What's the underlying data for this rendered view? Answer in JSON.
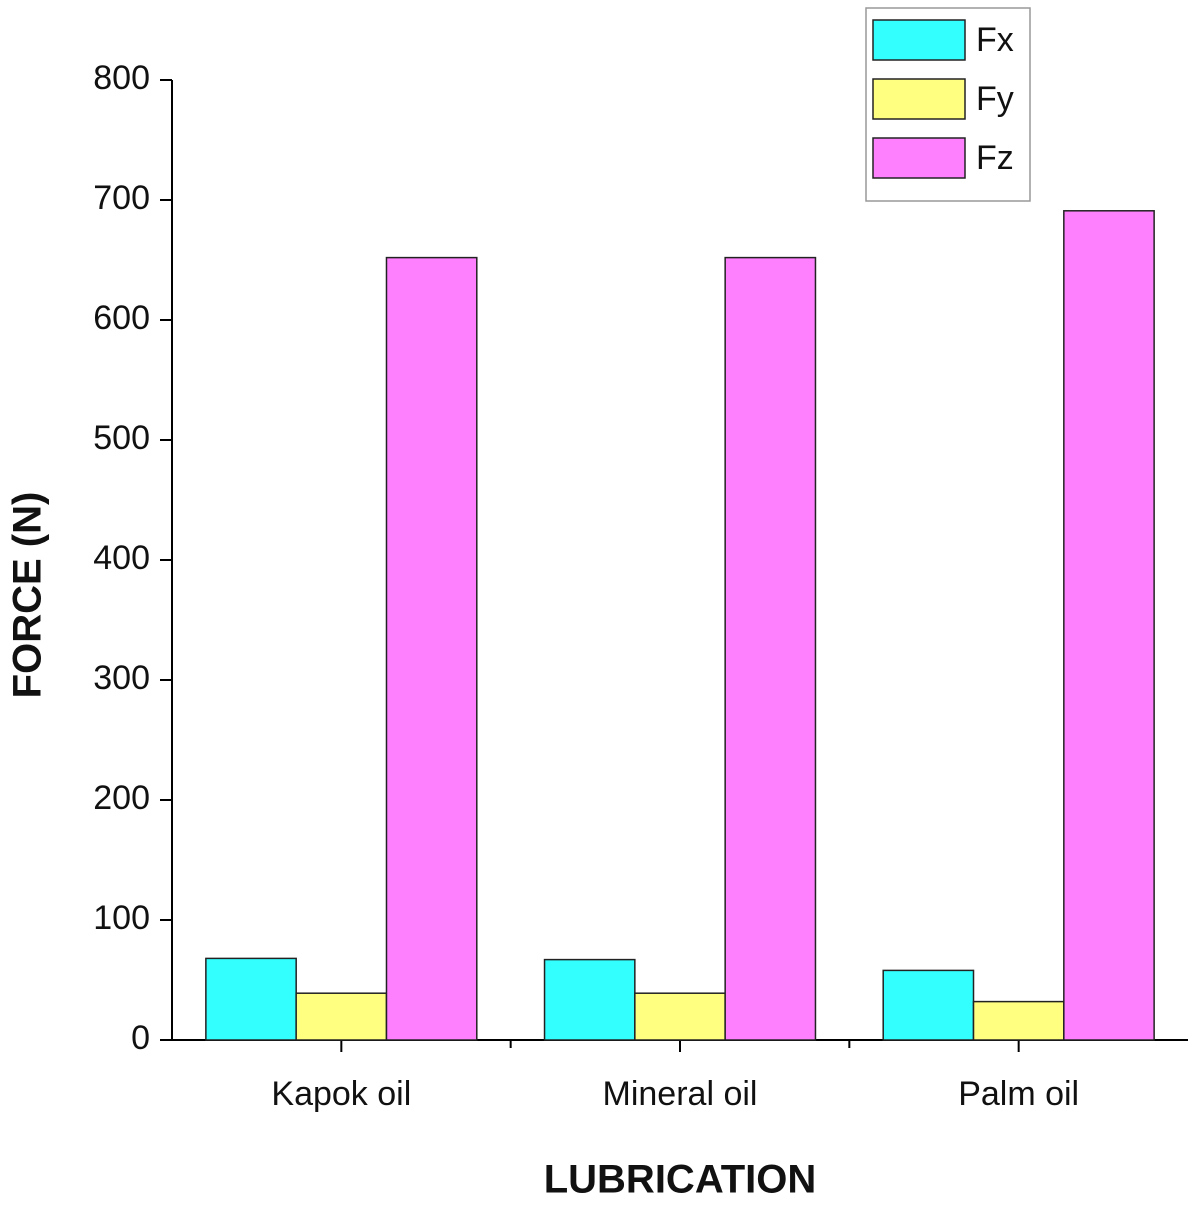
{
  "chart_data": {
    "type": "bar",
    "x_label": "LUBRICATION",
    "y_label": "FORCE (N)",
    "categories": [
      "Kapok oil",
      "Mineral oil",
      "Palm oil"
    ],
    "series": [
      {
        "name": "Fx",
        "color": "#33ffff",
        "values": [
          68,
          67,
          58
        ]
      },
      {
        "name": "Fy",
        "color": "#ffff80",
        "values": [
          39,
          39,
          32
        ]
      },
      {
        "name": "Fz",
        "color": "#ff80ff",
        "values": [
          652,
          652,
          691
        ]
      }
    ],
    "ylim": [
      0,
      800
    ],
    "yticks": [
      0,
      100,
      200,
      300,
      400,
      500,
      600,
      700,
      800
    ],
    "grid": false,
    "legend": "top-right"
  }
}
